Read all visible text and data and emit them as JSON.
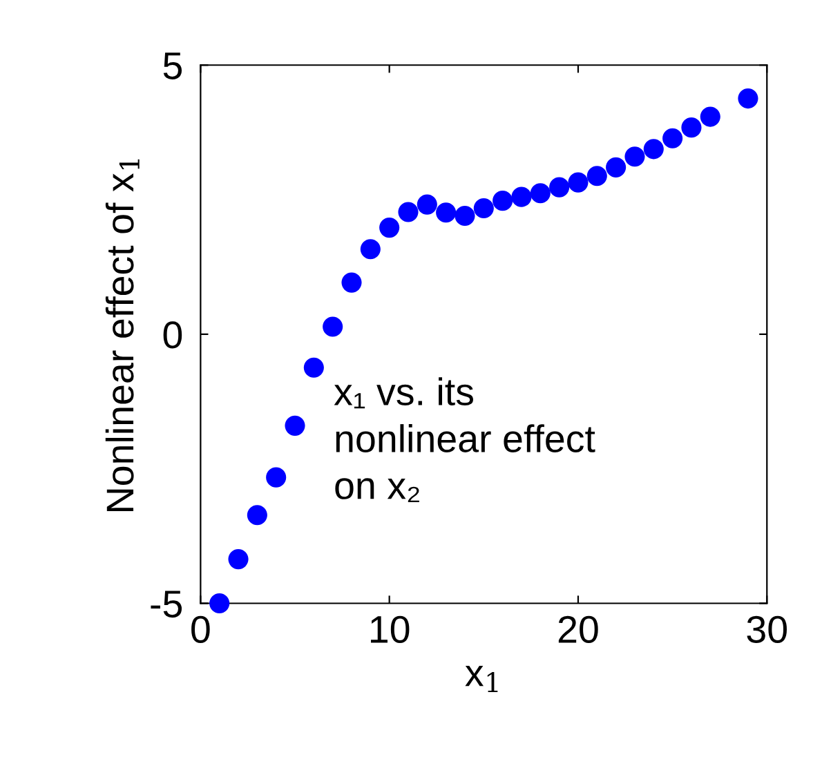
{
  "chart_data": {
    "type": "scatter",
    "xlabel": "x$_{1}$",
    "ylabel": "Nonlinear effect of x$_{1}$",
    "x": [
      1,
      2,
      3,
      4,
      5,
      6,
      7,
      8,
      9,
      10,
      11,
      12,
      13,
      14,
      15,
      16,
      17,
      18,
      19,
      20,
      21,
      22,
      23,
      24,
      25,
      26,
      27,
      29
    ],
    "values": [
      -5.0,
      -4.18,
      -3.36,
      -2.66,
      -1.7,
      -0.62,
      0.14,
      0.96,
      1.58,
      1.98,
      2.27,
      2.41,
      2.26,
      2.2,
      2.34,
      2.48,
      2.55,
      2.62,
      2.73,
      2.82,
      2.94,
      3.1,
      3.3,
      3.44,
      3.64,
      3.84,
      4.04,
      4.38
    ],
    "color": "#0000ff",
    "marker": "circle",
    "xlim": [
      0,
      30
    ],
    "xticks": [
      0,
      10,
      20,
      30
    ],
    "ylim": [
      -5,
      5
    ],
    "yticks": [
      -5,
      0,
      5
    ],
    "grid": false,
    "legend": false,
    "annotations": [
      "x₁ vs. its\nnonlinear effect\non x₂"
    ]
  }
}
